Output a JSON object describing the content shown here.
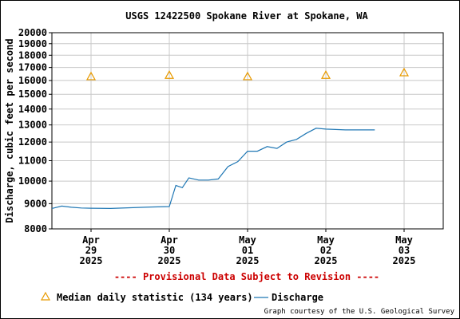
{
  "chart_data": {
    "type": "line",
    "title": "USGS 12422500 Spokane River at Spokane, WA",
    "ylabel": "Discharge, cubic feet per second",
    "ylim": [
      8000,
      20000
    ],
    "yscale": "log",
    "yticks": [
      8000,
      9000,
      10000,
      11000,
      12000,
      13000,
      14000,
      15000,
      16000,
      17000,
      18000,
      19000,
      20000
    ],
    "xlim": [
      "2025-04-28T12:00",
      "2025-05-03T12:00"
    ],
    "xticks": [
      {
        "at": "2025-04-29T00:00",
        "lines": [
          "Apr",
          "29",
          "2025"
        ]
      },
      {
        "at": "2025-04-30T00:00",
        "lines": [
          "Apr",
          "30",
          "2025"
        ]
      },
      {
        "at": "2025-05-01T00:00",
        "lines": [
          "May",
          "01",
          "2025"
        ]
      },
      {
        "at": "2025-05-02T00:00",
        "lines": [
          "May",
          "02",
          "2025"
        ]
      },
      {
        "at": "2025-05-03T00:00",
        "lines": [
          "May",
          "03",
          "2025"
        ]
      }
    ],
    "grid": true,
    "series": [
      {
        "name": "Discharge",
        "color": "#1f77b4",
        "points": [
          [
            "2025-04-28T12:00",
            8800
          ],
          [
            "2025-04-28T15:00",
            8900
          ],
          [
            "2025-04-28T18:00",
            8850
          ],
          [
            "2025-04-28T21:00",
            8820
          ],
          [
            "2025-04-29T00:00",
            8810
          ],
          [
            "2025-04-29T06:00",
            8800
          ],
          [
            "2025-04-29T12:00",
            8830
          ],
          [
            "2025-04-29T18:00",
            8860
          ],
          [
            "2025-04-30T00:00",
            8880
          ],
          [
            "2025-04-30T02:00",
            9800
          ],
          [
            "2025-04-30T04:00",
            9700
          ],
          [
            "2025-04-30T06:00",
            10150
          ],
          [
            "2025-04-30T09:00",
            10050
          ],
          [
            "2025-04-30T12:00",
            10050
          ],
          [
            "2025-04-30T15:00",
            10100
          ],
          [
            "2025-04-30T18:00",
            10700
          ],
          [
            "2025-04-30T21:00",
            10950
          ],
          [
            "2025-05-01T00:00",
            11500
          ],
          [
            "2025-05-01T03:00",
            11500
          ],
          [
            "2025-05-01T06:00",
            11750
          ],
          [
            "2025-05-01T09:00",
            11650
          ],
          [
            "2025-05-01T12:00",
            12000
          ],
          [
            "2025-05-01T15:00",
            12150
          ],
          [
            "2025-05-01T18:00",
            12500
          ],
          [
            "2025-05-01T21:00",
            12800
          ],
          [
            "2025-05-02T00:00",
            12750
          ],
          [
            "2025-05-02T06:00",
            12700
          ],
          [
            "2025-05-02T12:00",
            12700
          ],
          [
            "2025-05-02T15:00",
            12700
          ]
        ]
      },
      {
        "name": "Median daily statistic (134 years)",
        "color": "#e89a00",
        "marker": "triangle",
        "points": [
          [
            "2025-04-29T00:00",
            16300
          ],
          [
            "2025-04-30T00:00",
            16400
          ],
          [
            "2025-05-01T00:00",
            16300
          ],
          [
            "2025-05-02T00:00",
            16400
          ],
          [
            "2025-05-03T00:00",
            16600
          ]
        ]
      }
    ]
  },
  "provisional_note": "---- Provisional Data Subject to Revision ----",
  "legend": {
    "median_label": "Median daily statistic (134 years)",
    "discharge_label": "Discharge"
  },
  "credit": "Graph courtesy of the U.S. Geological Survey"
}
